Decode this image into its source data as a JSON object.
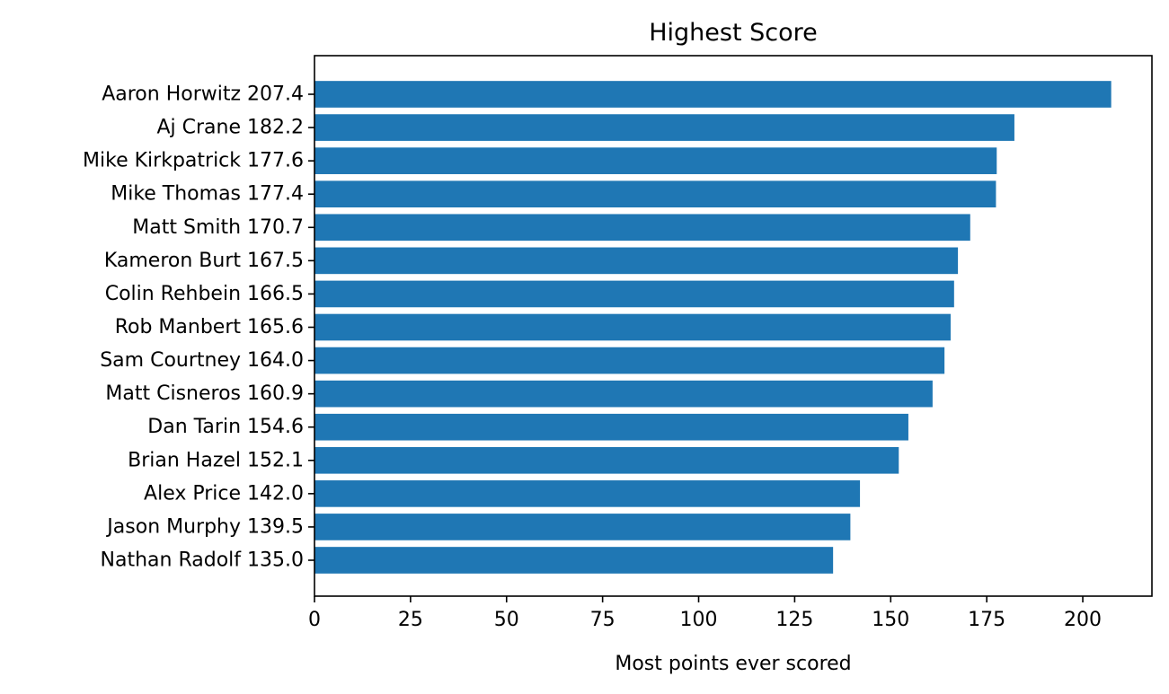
{
  "chart_data": {
    "type": "bar",
    "orientation": "horizontal",
    "title": "Highest Score",
    "xlabel": "Most points ever scored",
    "ylabel": "",
    "xlim": [
      0,
      218
    ],
    "xticks": [
      0,
      25,
      50,
      75,
      100,
      125,
      150,
      175,
      200
    ],
    "grid": false,
    "bar_color": "#1f77b4",
    "categories": [
      "Aaron Horwitz 207.4",
      "Aj Crane 182.2",
      "Mike Kirkpatrick 177.6",
      "Mike Thomas 177.4",
      "Matt Smith 170.7",
      "Kameron Burt 167.5",
      "Colin Rehbein 166.5",
      "Rob Manbert 165.6",
      "Sam Courtney 164.0",
      "Matt Cisneros 160.9",
      "Dan Tarin 154.6",
      "Brian Hazel 152.1",
      "Alex Price 142.0",
      "Jason Murphy 139.5",
      "Nathan Radolf 135.0"
    ],
    "values": [
      207.4,
      182.2,
      177.6,
      177.4,
      170.7,
      167.5,
      166.5,
      165.6,
      164.0,
      160.9,
      154.6,
      152.1,
      142.0,
      139.5,
      135.0
    ]
  }
}
